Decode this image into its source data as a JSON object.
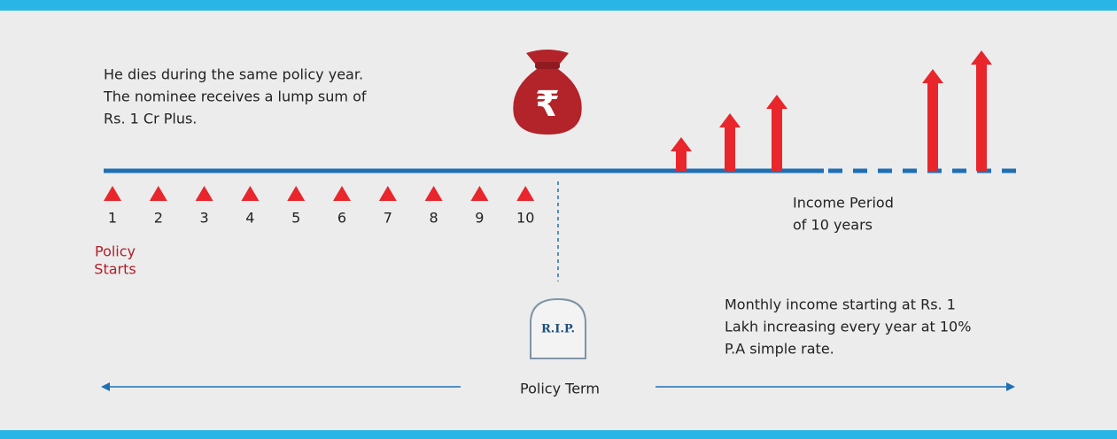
{
  "description": [
    "He dies during the same policy year.",
    "The nominee receives a lump sum of",
    "Rs. 1 Cr Plus."
  ],
  "bag_symbol": "₹",
  "years": [
    "1",
    "2",
    "3",
    "4",
    "5",
    "6",
    "7",
    "8",
    "9",
    "10"
  ],
  "start_label": [
    "Policy",
    "Starts"
  ],
  "tombstone": "R.I.P.",
  "income_period": [
    "Income Period",
    "of 10 years"
  ],
  "income_note": [
    "Monthly income starting at Rs. 1",
    "Lakh increasing every year at 10%",
    "P.A simple rate."
  ],
  "policy_term": "Policy Term"
}
